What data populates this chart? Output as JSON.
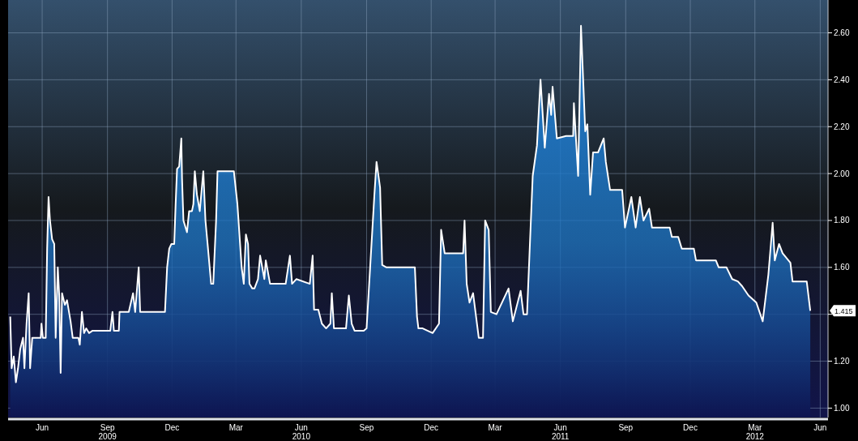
{
  "chart_data": {
    "type": "area",
    "x": [
      "2009-04-17",
      "2009-04-19",
      "2009-04-22",
      "2009-04-25",
      "2009-04-28",
      "2009-05-01",
      "2009-05-05",
      "2009-05-07",
      "2009-05-10",
      "2009-05-13",
      "2009-05-15",
      "2009-05-18",
      "2009-05-21",
      "2009-05-30",
      "2009-05-31",
      "2009-06-02",
      "2009-06-06",
      "2009-06-08",
      "2009-06-10",
      "2009-06-12",
      "2009-06-15",
      "2009-06-18",
      "2009-06-20",
      "2009-06-23",
      "2009-06-25",
      "2009-06-27",
      "2009-06-29",
      "2009-07-03",
      "2009-07-06",
      "2009-07-11",
      "2009-07-14",
      "2009-07-22",
      "2009-07-24",
      "2009-07-27",
      "2009-07-30",
      "2009-08-02",
      "2009-08-06",
      "2009-08-11",
      "2009-08-17",
      "2009-09-05",
      "2009-09-08",
      "2009-09-10",
      "2009-09-17",
      "2009-09-18",
      "2009-10-01",
      "2009-10-07",
      "2009-10-10",
      "2009-10-15",
      "2009-10-17",
      "2009-10-30",
      "2009-11-21",
      "2009-11-24",
      "2009-11-27",
      "2009-11-30",
      "2009-12-04",
      "2009-12-06",
      "2009-12-08",
      "2009-12-11",
      "2009-12-14",
      "2009-12-15",
      "2009-12-17",
      "2009-12-22",
      "2009-12-25",
      "2009-12-29",
      "2009-12-31",
      "2010-01-02",
      "2010-01-05",
      "2010-01-09",
      "2010-01-14",
      "2010-01-17",
      "2010-01-20",
      "2010-01-25",
      "2010-01-28",
      "2010-02-01",
      "2010-02-03",
      "2010-02-14",
      "2010-02-26",
      "2010-03-03",
      "2010-03-09",
      "2010-03-12",
      "2010-03-15",
      "2010-03-18",
      "2010-03-20",
      "2010-03-24",
      "2010-03-27",
      "2010-04-01",
      "2010-04-04",
      "2010-04-10",
      "2010-04-12",
      "2010-04-18",
      "2010-04-29",
      "2010-05-10",
      "2010-05-16",
      "2010-05-19",
      "2010-05-25",
      "2010-06-13",
      "2010-06-17",
      "2010-06-19",
      "2010-06-25",
      "2010-06-30",
      "2010-07-06",
      "2010-07-12",
      "2010-07-14",
      "2010-07-17",
      "2010-07-23",
      "2010-08-03",
      "2010-08-07",
      "2010-08-11",
      "2010-08-15",
      "2010-08-28",
      "2010-09-01",
      "2010-09-06",
      "2010-09-12",
      "2010-09-15",
      "2010-09-20",
      "2010-09-23",
      "2010-09-29",
      "2010-10-22",
      "2010-11-08",
      "2010-11-11",
      "2010-11-13",
      "2010-11-19",
      "2010-12-03",
      "2010-12-12",
      "2010-12-15",
      "2010-12-20",
      "2011-01-15",
      "2011-01-17",
      "2011-01-20",
      "2011-01-24",
      "2011-01-29",
      "2011-02-06",
      "2011-02-12",
      "2011-02-15",
      "2011-02-20",
      "2011-02-23",
      "2011-03-03",
      "2011-03-20",
      "2011-03-26",
      "2011-04-06",
      "2011-04-10",
      "2011-04-15",
      "2011-04-23",
      "2011-04-29",
      "2011-05-04",
      "2011-05-10",
      "2011-05-16",
      "2011-05-19",
      "2011-05-21",
      "2011-05-27",
      "2011-06-09",
      "2011-06-19",
      "2011-06-20",
      "2011-06-26",
      "2011-06-30",
      "2011-07-06",
      "2011-07-09",
      "2011-07-13",
      "2011-07-17",
      "2011-07-24",
      "2011-08-01",
      "2011-08-04",
      "2011-08-10",
      "2011-08-27",
      "2011-08-31",
      "2011-09-09",
      "2011-09-15",
      "2011-09-21",
      "2011-09-26",
      "2011-10-04",
      "2011-10-08",
      "2011-11-02",
      "2011-11-05",
      "2011-11-14",
      "2011-11-19",
      "2011-12-06",
      "2011-12-09",
      "2012-01-06",
      "2012-01-10",
      "2012-01-21",
      "2012-01-29",
      "2012-02-06",
      "2012-02-12",
      "2012-02-21",
      "2012-03-03",
      "2012-03-12",
      "2012-03-20",
      "2012-03-26",
      "2012-03-29",
      "2012-04-04",
      "2012-04-09",
      "2012-04-20",
      "2012-04-23",
      "2012-05-13",
      "2012-05-18"
    ],
    "series": [
      {
        "color": "#1f78c8",
        "values": [
          1.39,
          1.17,
          1.22,
          1.11,
          1.17,
          1.25,
          1.3,
          1.17,
          1.36,
          1.49,
          1.17,
          1.3,
          1.3,
          1.3,
          1.36,
          1.3,
          1.3,
          1.68,
          1.9,
          1.8,
          1.72,
          1.7,
          1.3,
          1.6,
          1.48,
          1.15,
          1.49,
          1.44,
          1.46,
          1.37,
          1.3,
          1.3,
          1.27,
          1.41,
          1.32,
          1.34,
          1.32,
          1.33,
          1.33,
          1.33,
          1.41,
          1.33,
          1.33,
          1.41,
          1.41,
          1.49,
          1.41,
          1.6,
          1.41,
          1.41,
          1.41,
          1.6,
          1.68,
          1.7,
          1.7,
          1.87,
          2.02,
          2.03,
          2.15,
          1.98,
          1.8,
          1.75,
          1.84,
          1.84,
          1.87,
          2.01,
          1.91,
          1.84,
          2.01,
          1.8,
          1.7,
          1.53,
          1.53,
          1.8,
          2.01,
          2.01,
          2.01,
          1.87,
          1.6,
          1.53,
          1.74,
          1.7,
          1.53,
          1.51,
          1.51,
          1.55,
          1.65,
          1.55,
          1.63,
          1.53,
          1.53,
          1.53,
          1.65,
          1.53,
          1.55,
          1.53,
          1.65,
          1.42,
          1.42,
          1.36,
          1.34,
          1.36,
          1.49,
          1.34,
          1.34,
          1.34,
          1.48,
          1.36,
          1.33,
          1.33,
          1.34,
          1.6,
          1.91,
          2.05,
          1.94,
          1.61,
          1.6,
          1.6,
          1.6,
          1.39,
          1.34,
          1.34,
          1.32,
          1.36,
          1.76,
          1.66,
          1.66,
          1.8,
          1.53,
          1.45,
          1.49,
          1.3,
          1.3,
          1.8,
          1.76,
          1.41,
          1.4,
          1.51,
          1.37,
          1.5,
          1.4,
          1.4,
          1.99,
          2.12,
          2.4,
          2.11,
          2.34,
          2.25,
          2.37,
          2.15,
          2.16,
          2.16,
          2.3,
          1.99,
          2.63,
          2.18,
          2.21,
          1.91,
          2.09,
          2.09,
          2.15,
          2.05,
          1.93,
          1.93,
          1.77,
          1.9,
          1.77,
          1.9,
          1.8,
          1.85,
          1.77,
          1.77,
          1.73,
          1.73,
          1.68,
          1.68,
          1.63,
          1.63,
          1.6,
          1.6,
          1.55,
          1.54,
          1.52,
          1.48,
          1.45,
          1.37,
          1.57,
          1.79,
          1.63,
          1.7,
          1.66,
          1.62,
          1.54,
          1.54,
          1.415
        ]
      }
    ],
    "xlim": [
      "2009-04-14",
      "2012-06-12"
    ],
    "xticks": [
      {
        "value": "2009-06-01",
        "label": "Jun"
      },
      {
        "value": "2009-09-01",
        "label": "Sep\n2009"
      },
      {
        "value": "2009-12-01",
        "label": "Dec"
      },
      {
        "value": "2010-03-01",
        "label": "Mar"
      },
      {
        "value": "2010-06-01",
        "label": "Jun\n2010"
      },
      {
        "value": "2010-09-01",
        "label": "Sep"
      },
      {
        "value": "2010-12-01",
        "label": "Dec"
      },
      {
        "value": "2011-03-01",
        "label": "Mar"
      },
      {
        "value": "2011-06-01",
        "label": "Jun\n2011"
      },
      {
        "value": "2011-09-01",
        "label": "Sep"
      },
      {
        "value": "2011-12-01",
        "label": "Dec"
      },
      {
        "value": "2012-03-01",
        "label": "Mar\n2012"
      },
      {
        "value": "2012-06-01",
        "label": "Jun"
      }
    ],
    "ylim": [
      0.96,
      2.74
    ],
    "yticks": [
      {
        "value": 1.0,
        "label": "1.00"
      },
      {
        "value": 1.2,
        "label": "1.20"
      },
      {
        "value": 1.4,
        "label": null
      },
      {
        "value": 1.6,
        "label": "1.60"
      },
      {
        "value": 1.8,
        "label": "1.80"
      },
      {
        "value": 2.0,
        "label": "2.00"
      },
      {
        "value": 2.2,
        "label": "2.20"
      },
      {
        "value": 2.4,
        "label": "2.40"
      },
      {
        "value": 2.6,
        "label": "2.60"
      }
    ],
    "grid": true,
    "annotations": [
      "1.415"
    ]
  }
}
